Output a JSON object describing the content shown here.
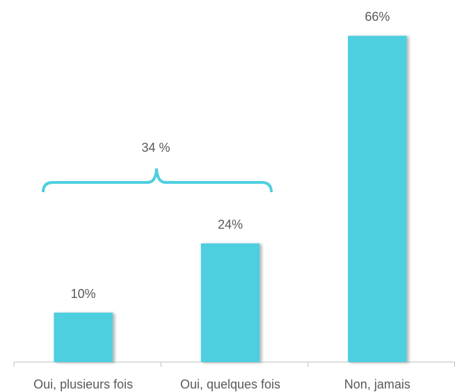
{
  "chart_data": {
    "type": "bar",
    "categories": [
      "Oui, plusieurs fois",
      "Oui, quelques fois",
      "Non, jamais"
    ],
    "values": [
      10,
      24,
      66
    ],
    "value_labels": [
      "10%",
      "24%",
      "66%"
    ],
    "color": "#4ecfdf",
    "ylim": [
      0,
      70
    ],
    "annotation": "34 %"
  }
}
